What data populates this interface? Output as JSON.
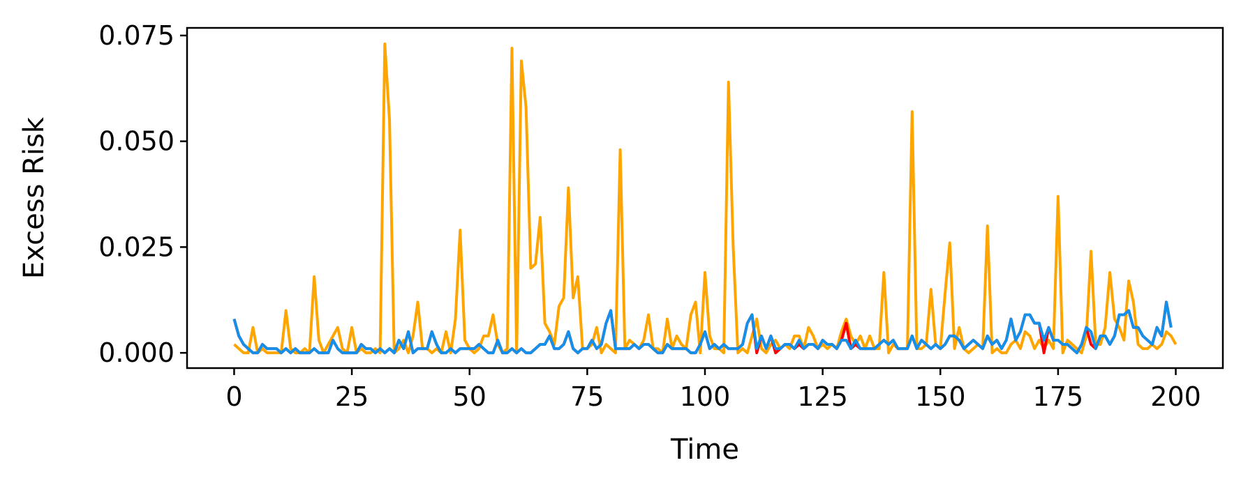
{
  "chart_data": {
    "type": "line",
    "xlabel": "Time",
    "ylabel": "Excess Risk",
    "xlim": [
      -10,
      210
    ],
    "ylim": [
      -0.0036,
      0.0768
    ],
    "xticks": [
      0,
      25,
      50,
      75,
      100,
      125,
      150,
      175,
      200
    ],
    "yticks": [
      0.0,
      0.025,
      0.05,
      0.075
    ],
    "xtick_labels": [
      "0",
      "25",
      "50",
      "75",
      "100",
      "125",
      "150",
      "175",
      "200"
    ],
    "ytick_labels": [
      "0.000",
      "0.025",
      "0.050",
      "0.075"
    ],
    "grid": false,
    "legend": "none",
    "series": [
      {
        "color": "#ffa500",
        "values": [
          0.002,
          0.001,
          0.0,
          0.0,
          0.006,
          0.0,
          0.001,
          0.0,
          0.0,
          0.0,
          0.0,
          0.01,
          0.001,
          0.0,
          0.0,
          0.001,
          0.0,
          0.018,
          0.003,
          0.0,
          0.002,
          0.004,
          0.006,
          0.001,
          0.0,
          0.006,
          0.0,
          0.001,
          0.0,
          0.0,
          0.001,
          0.0,
          0.073,
          0.055,
          0.0,
          0.001,
          0.003,
          0.0,
          0.004,
          0.012,
          0.001,
          0.001,
          0.0,
          0.001,
          0.0,
          0.005,
          0.0,
          0.008,
          0.029,
          0.003,
          0.001,
          0.0,
          0.001,
          0.004,
          0.004,
          0.009,
          0.002,
          0.0,
          0.001,
          0.072,
          0.0,
          0.069,
          0.058,
          0.02,
          0.021,
          0.032,
          0.007,
          0.005,
          0.002,
          0.011,
          0.013,
          0.039,
          0.013,
          0.018,
          0.001,
          0.001,
          0.002,
          0.006,
          0.0,
          0.002,
          0.001,
          0.0,
          0.048,
          0.001,
          0.003,
          0.002,
          0.001,
          0.003,
          0.009,
          0.001,
          0.001,
          0.0,
          0.008,
          0.001,
          0.004,
          0.002,
          0.001,
          0.009,
          0.012,
          0.0,
          0.019,
          0.004,
          0.001,
          0.001,
          0.0,
          0.064,
          0.025,
          0.0,
          0.001,
          0.0,
          0.004,
          0.008,
          0.001,
          0.0,
          0.002,
          0.003,
          0.001,
          0.002,
          0.001,
          0.004,
          0.004,
          0.001,
          0.006,
          0.004,
          0.001,
          0.002,
          0.001,
          0.002,
          0.001,
          0.005,
          0.008,
          0.004,
          0.002,
          0.004,
          0.001,
          0.004,
          0.001,
          0.001,
          0.019,
          0.0,
          0.002,
          0.001,
          0.001,
          0.001,
          0.057,
          0.001,
          0.001,
          0.002,
          0.015,
          0.002,
          0.001,
          0.014,
          0.026,
          0.001,
          0.006,
          0.001,
          0.0,
          0.001,
          0.002,
          0.001,
          0.03,
          0.0,
          0.001,
          0.0,
          0.0,
          0.002,
          0.003,
          0.001,
          0.005,
          0.004,
          0.001,
          0.003,
          0.001,
          0.003,
          0.001,
          0.037,
          0.0,
          0.003,
          0.002,
          0.001,
          0.0,
          0.004,
          0.024,
          0.002,
          0.002,
          0.006,
          0.019,
          0.008,
          0.006,
          0.003,
          0.017,
          0.012,
          0.002,
          0.001,
          0.001,
          0.002,
          0.001,
          0.002,
          0.005,
          0.004,
          0.002
        ]
      },
      {
        "color": "#ff0000",
        "values": [
          0.008,
          0.004,
          0.002,
          0.001,
          0.0,
          0.0,
          0.002,
          0.001,
          0.001,
          0.001,
          0.0,
          0.001,
          0.0,
          0.001,
          0.0,
          0.0,
          0.0,
          0.001,
          0.0,
          0.0,
          0.0,
          0.003,
          0.001,
          0.0,
          0.0,
          0.0,
          0.0,
          0.002,
          0.001,
          0.001,
          0.0,
          0.001,
          0.0,
          0.001,
          0.0,
          0.003,
          0.001,
          0.005,
          0.0,
          0.001,
          0.001,
          0.001,
          0.005,
          0.002,
          0.0,
          0.0,
          0.001,
          0.0,
          0.001,
          0.001,
          0.001,
          0.001,
          0.002,
          0.001,
          0.0,
          0.0,
          0.003,
          0.0,
          0.0,
          0.001,
          0.0,
          0.001,
          0.0,
          0.0,
          0.001,
          0.002,
          0.002,
          0.004,
          0.001,
          0.001,
          0.002,
          0.005,
          0.001,
          0.0,
          0.001,
          0.001,
          0.003,
          0.001,
          0.002,
          0.007,
          0.01,
          0.001,
          0.001,
          0.001,
          0.001,
          0.002,
          0.001,
          0.002,
          0.002,
          0.001,
          0.0,
          0.0,
          0.002,
          0.001,
          0.001,
          0.001,
          0.001,
          0.0,
          0.0,
          0.002,
          0.005,
          0.001,
          0.002,
          0.001,
          0.002,
          0.001,
          0.001,
          0.001,
          0.002,
          0.007,
          0.009,
          0.0,
          0.004,
          0.001,
          0.004,
          0.0,
          0.001,
          0.002,
          0.002,
          0.001,
          0.002,
          0.001,
          0.002,
          0.002,
          0.001,
          0.003,
          0.002,
          0.002,
          0.001,
          0.003,
          0.007,
          0.001,
          0.002,
          0.001,
          0.001,
          0.001,
          0.001,
          0.002,
          0.003,
          0.002,
          0.003,
          0.001,
          0.001,
          0.001,
          0.004,
          0.001,
          0.003,
          0.002,
          0.001,
          0.002,
          0.001,
          0.002,
          0.004,
          0.004,
          0.003,
          0.001,
          0.002,
          0.003,
          0.002,
          0.001,
          0.004,
          0.002,
          0.003,
          0.001,
          0.003,
          0.008,
          0.003,
          0.005,
          0.009,
          0.009,
          0.007,
          0.007,
          0.0,
          0.006,
          0.003,
          0.003,
          0.002,
          0.002,
          0.001,
          0.0,
          0.002,
          0.006,
          0.002,
          0.001,
          0.004,
          0.004,
          0.002,
          0.004,
          0.009,
          0.009,
          0.01,
          0.006,
          0.006,
          0.004,
          0.003,
          0.002,
          0.006,
          0.004,
          0.012,
          0.006
        ]
      },
      {
        "color": "#1490ea",
        "values": [
          0.008,
          0.004,
          0.002,
          0.001,
          0.0,
          0.0,
          0.002,
          0.001,
          0.001,
          0.001,
          0.0,
          0.001,
          0.0,
          0.001,
          0.0,
          0.0,
          0.0,
          0.001,
          0.0,
          0.0,
          0.0,
          0.003,
          0.001,
          0.0,
          0.0,
          0.0,
          0.0,
          0.002,
          0.001,
          0.001,
          0.0,
          0.001,
          0.0,
          0.001,
          0.0,
          0.003,
          0.001,
          0.005,
          0.0,
          0.001,
          0.001,
          0.001,
          0.005,
          0.002,
          0.0,
          0.0,
          0.001,
          0.0,
          0.001,
          0.001,
          0.001,
          0.001,
          0.002,
          0.001,
          0.0,
          0.0,
          0.003,
          0.0,
          0.0,
          0.001,
          0.0,
          0.001,
          0.0,
          0.0,
          0.001,
          0.002,
          0.002,
          0.004,
          0.001,
          0.001,
          0.002,
          0.005,
          0.001,
          0.0,
          0.001,
          0.001,
          0.003,
          0.001,
          0.002,
          0.007,
          0.01,
          0.001,
          0.001,
          0.001,
          0.001,
          0.002,
          0.001,
          0.002,
          0.002,
          0.001,
          0.0,
          0.0,
          0.002,
          0.001,
          0.001,
          0.001,
          0.001,
          0.0,
          0.0,
          0.002,
          0.005,
          0.001,
          0.002,
          0.001,
          0.002,
          0.001,
          0.001,
          0.001,
          0.002,
          0.007,
          0.009,
          0.001,
          0.004,
          0.001,
          0.004,
          0.001,
          0.001,
          0.002,
          0.002,
          0.001,
          0.003,
          0.001,
          0.002,
          0.002,
          0.001,
          0.003,
          0.002,
          0.002,
          0.001,
          0.003,
          0.003,
          0.001,
          0.003,
          0.001,
          0.001,
          0.001,
          0.001,
          0.002,
          0.003,
          0.002,
          0.003,
          0.001,
          0.001,
          0.001,
          0.004,
          0.001,
          0.003,
          0.002,
          0.001,
          0.002,
          0.001,
          0.002,
          0.004,
          0.004,
          0.003,
          0.001,
          0.002,
          0.003,
          0.002,
          0.001,
          0.004,
          0.002,
          0.003,
          0.001,
          0.003,
          0.008,
          0.003,
          0.005,
          0.009,
          0.009,
          0.007,
          0.007,
          0.003,
          0.006,
          0.003,
          0.003,
          0.002,
          0.002,
          0.001,
          0.0,
          0.002,
          0.006,
          0.005,
          0.001,
          0.004,
          0.004,
          0.002,
          0.004,
          0.009,
          0.009,
          0.01,
          0.006,
          0.006,
          0.004,
          0.003,
          0.002,
          0.006,
          0.004,
          0.012,
          0.006
        ]
      }
    ]
  }
}
